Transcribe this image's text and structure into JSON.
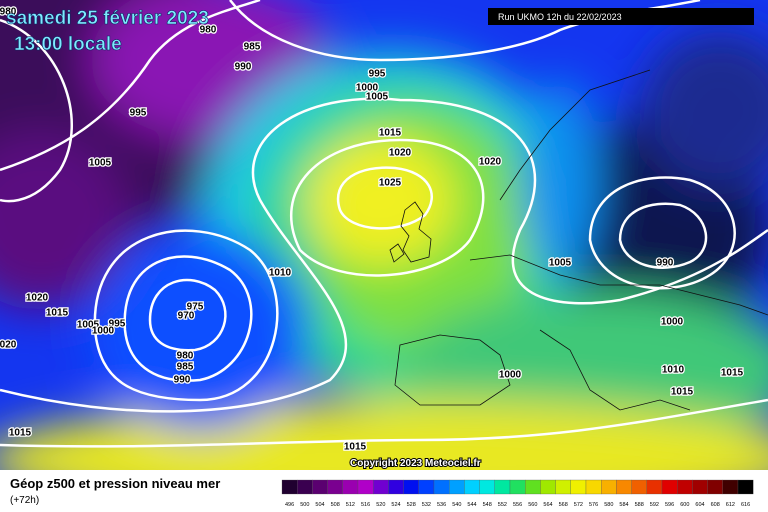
{
  "header": {
    "date": "samedi 25 février 2023",
    "time": "13:00 locale",
    "run": "Run UKMO 12h du 22/02/2023",
    "copyright": "Copyright 2023 Meteociel.fr"
  },
  "legend": {
    "title": "Géop z500 et pression niveau mer",
    "lead": "(+72h)",
    "scale": [
      496,
      500,
      504,
      508,
      512,
      516,
      520,
      524,
      528,
      532,
      536,
      540,
      544,
      548,
      552,
      556,
      560,
      564,
      568,
      572,
      576,
      580,
      584,
      588,
      592,
      596,
      600,
      604,
      608,
      612,
      616
    ]
  },
  "isobar_labels": [
    "980",
    "980",
    "985",
    "990",
    "995",
    "1000",
    "1005",
    "995",
    "1005",
    "1015",
    "1020",
    "1020",
    "1025",
    "1010",
    "1005",
    "990",
    "975",
    "970",
    "1020",
    "1015",
    "1005",
    "995",
    "1000",
    "980",
    "985",
    "990",
    "1000",
    "1000",
    "1010",
    "1015",
    "1015",
    "020",
    "1015",
    "1015"
  ]
}
